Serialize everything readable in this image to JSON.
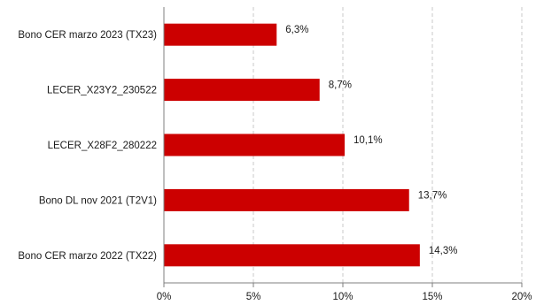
{
  "chart_data": {
    "type": "bar",
    "orientation": "horizontal",
    "categories": [
      "Bono CER marzo 2023 (TX23)",
      "LECER_X23Y2_230522",
      "LECER_X28F2_280222",
      "Bono DL nov 2021 (T2V1)",
      "Bono CER marzo 2022 (TX22)"
    ],
    "values": [
      6.3,
      8.7,
      10.1,
      13.7,
      14.3
    ],
    "value_labels": [
      "6,3%",
      "8,7%",
      "10,1%",
      "13,7%",
      "14,3%"
    ],
    "xticks": [
      0,
      5,
      10,
      15,
      20
    ],
    "xtick_labels": [
      "0%",
      "5%",
      "10%",
      "15%",
      "20%"
    ],
    "xlim": [
      0,
      20
    ],
    "grid": "vertical dashed",
    "bar_color": "#cc0000",
    "title": "",
    "xlabel": "",
    "ylabel": ""
  }
}
